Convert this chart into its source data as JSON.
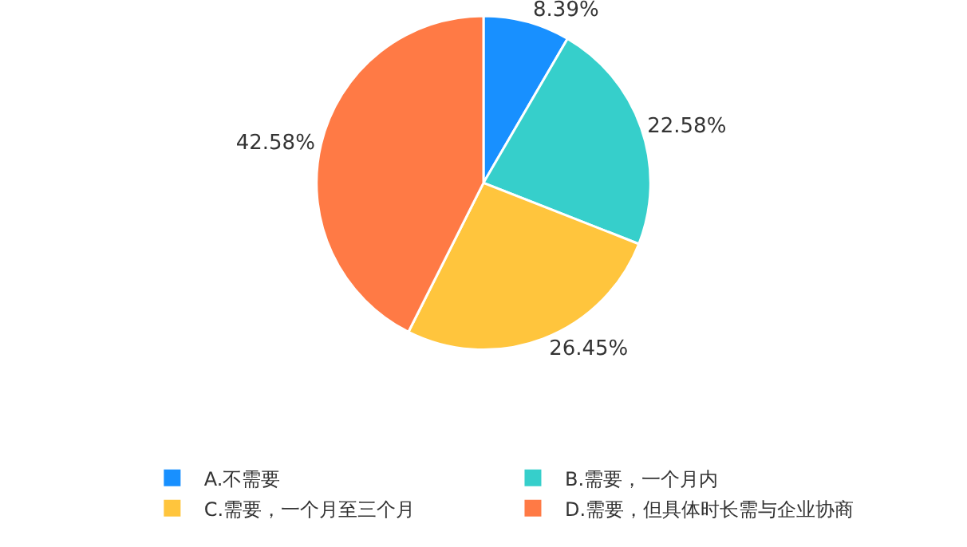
{
  "chart_data": {
    "type": "pie",
    "categories": [
      "A.不需要",
      "B.需要，一个月内",
      "C.需要，一个月至三个月",
      "D.需要，但具体时长需与企业协商"
    ],
    "values": [
      8.39,
      22.58,
      26.45,
      42.58
    ],
    "colors": [
      "#1890ff",
      "#36cfcb",
      "#ffc53d",
      "#ff7a45"
    ],
    "value_labels": [
      "8.39%",
      "22.58%",
      "26.45%",
      "42.58%"
    ],
    "legend": "bottom"
  }
}
